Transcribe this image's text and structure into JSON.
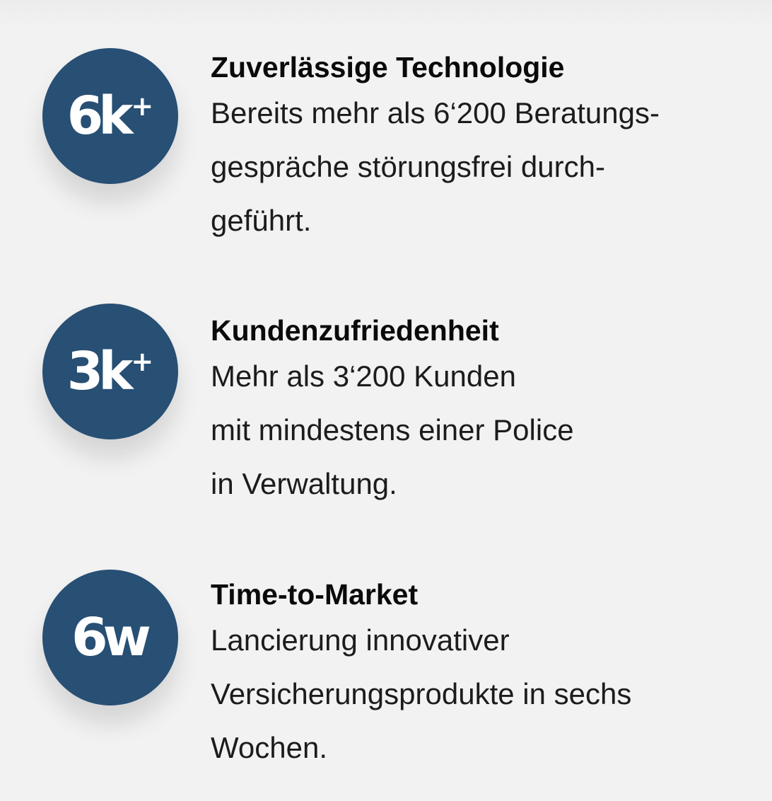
{
  "theme": {
    "accent": "#284f74",
    "background": "#f2f2f2"
  },
  "stats": [
    {
      "badge": {
        "value": "6k",
        "suffix": "+"
      },
      "title": "Zuverlässige Technologie",
      "lines": [
        "Bereits mehr als 6‘200 Beratungs-",
        "gespräche störungsfrei durch-",
        "geführt."
      ]
    },
    {
      "badge": {
        "value": "3k",
        "suffix": "+"
      },
      "title": "Kundenzufriedenheit",
      "lines": [
        "Mehr als 3‘200 Kunden",
        "mit mindestens einer Police",
        "in Verwaltung."
      ]
    },
    {
      "badge": {
        "value": "6w",
        "suffix": ""
      },
      "title": "Time-to-Market",
      "lines": [
        "Lancierung innovativer",
        "Versicherungsprodukte in sechs",
        "Wochen."
      ]
    }
  ]
}
